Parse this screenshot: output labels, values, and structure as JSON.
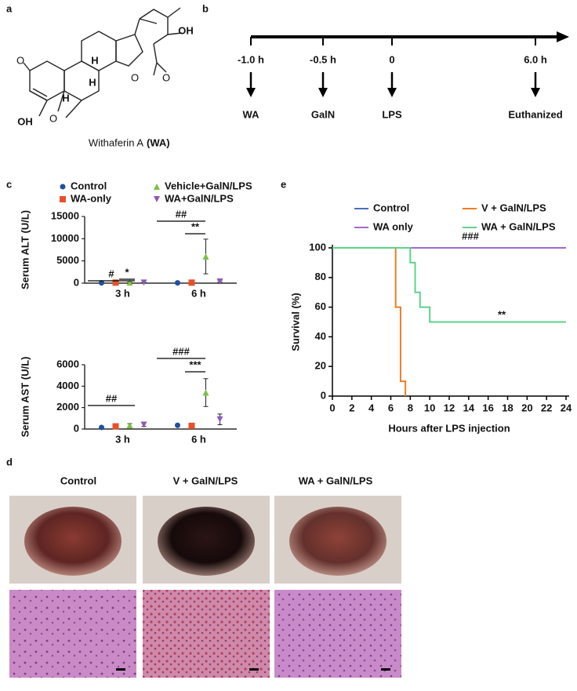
{
  "panel_labels": [
    "a",
    "b",
    "c",
    "d",
    "e"
  ],
  "structure": {
    "atoms": [
      "O",
      "OH",
      "O",
      "O",
      "OH",
      "O",
      "H",
      "H",
      "H"
    ],
    "caption": "Withaferin A",
    "caption_bold": "(WA)"
  },
  "timeline": {
    "times": [
      "-1.0 h",
      "-0.5 h",
      "0",
      "6.0 h"
    ],
    "events": [
      "WA",
      "GalN",
      "LPS",
      "Euthanized"
    ]
  },
  "legend_c": [
    "Control",
    "WA-only",
    "Vehicle+GalN/LPS",
    "WA+GalN/LPS"
  ],
  "chart_data": [
    {
      "type": "dot",
      "y_label": "Serum ALT (U/L)",
      "categories": [
        "3 h",
        "6 h"
      ],
      "ylim": [
        0,
        15000
      ],
      "yticks": [
        0,
        5000,
        10000,
        15000
      ],
      "series": [
        {
          "name": "Control",
          "color": "#1f4fa0",
          "marker": "circle",
          "values": [
            60,
            60
          ],
          "errors": [
            30,
            30
          ]
        },
        {
          "name": "WA-only",
          "color": "#e8502a",
          "marker": "square",
          "values": [
            120,
            120
          ],
          "errors": [
            60,
            60
          ]
        },
        {
          "name": "Vehicle+GalN/LPS",
          "color": "#7cc142",
          "marker": "triangle-up",
          "values": [
            150,
            6000
          ],
          "errors": [
            80,
            3900
          ]
        },
        {
          "name": "WA+GalN/LPS",
          "color": "#8e5bb5",
          "marker": "triangle-down",
          "values": [
            100,
            350
          ],
          "errors": [
            50,
            200
          ]
        }
      ],
      "annotations": [
        "#",
        "*",
        "##",
        "**"
      ]
    },
    {
      "type": "dot",
      "y_label": "Serum AST (U/L)",
      "categories": [
        "3 h",
        "6 h"
      ],
      "ylim": [
        0,
        6000
      ],
      "yticks": [
        0,
        2000,
        4000,
        6000
      ],
      "series": [
        {
          "name": "Control",
          "color": "#1f4fa0",
          "marker": "circle",
          "values": [
            150,
            350
          ],
          "errors": [
            60,
            60
          ]
        },
        {
          "name": "WA-only",
          "color": "#e8502a",
          "marker": "square",
          "values": [
            250,
            300
          ],
          "errors": [
            120,
            80
          ]
        },
        {
          "name": "Vehicle+GalN/LPS",
          "color": "#7cc142",
          "marker": "triangle-up",
          "values": [
            350,
            3400
          ],
          "errors": [
            150,
            1300
          ]
        },
        {
          "name": "WA+GalN/LPS",
          "color": "#8e5bb5",
          "marker": "triangle-down",
          "values": [
            400,
            900
          ],
          "errors": [
            150,
            500
          ]
        }
      ],
      "annotations": [
        "##",
        "###",
        "***"
      ]
    },
    {
      "type": "line",
      "x_label": "Hours after LPS injection",
      "y_label": "Survival (%)",
      "xlim": [
        0,
        24
      ],
      "xticks": [
        0,
        2,
        4,
        6,
        8,
        10,
        12,
        14,
        16,
        18,
        20,
        22,
        24
      ],
      "ylim": [
        0,
        100
      ],
      "yticks": [
        0,
        20,
        40,
        60,
        80,
        100
      ],
      "series": [
        {
          "name": "Control",
          "color": "#4a6fbf",
          "x": [
            0,
            24
          ],
          "values": [
            100,
            100
          ]
        },
        {
          "name": "V + GalN/LPS",
          "color": "#f07d22",
          "x": [
            0,
            6.5,
            6.5,
            7,
            7,
            7.5,
            7.5
          ],
          "values": [
            100,
            100,
            60,
            60,
            10,
            10,
            0
          ]
        },
        {
          "name": "WA only",
          "color": "#a06cc8",
          "x": [
            0,
            24
          ],
          "values": [
            100,
            100
          ]
        },
        {
          "name": "WA + GalN/LPS",
          "color": "#5bd48a",
          "x": [
            0,
            8,
            8,
            8.5,
            8.5,
            9,
            9,
            10,
            10,
            24
          ],
          "values": [
            100,
            100,
            90,
            90,
            70,
            70,
            60,
            60,
            50,
            50
          ]
        }
      ],
      "annotations": [
        "###",
        "**"
      ]
    }
  ],
  "photos": {
    "columns": [
      "Control",
      "V + GalN/LPS",
      "WA + GalN/LPS"
    ]
  }
}
